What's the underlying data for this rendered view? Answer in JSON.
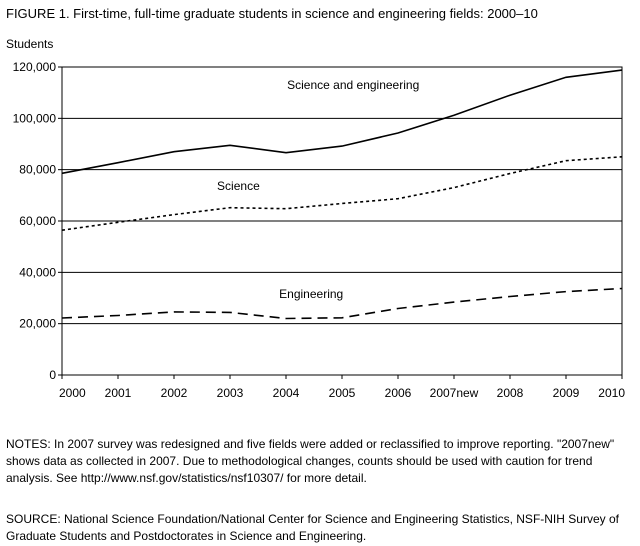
{
  "figure_title": "FIGURE 1.  First-time, full-time graduate students in science and engineering fields: 2000–10",
  "chart_data": {
    "type": "line",
    "title": "FIGURE 1.  First-time, full-time graduate students in science and engineering fields: 2000–10",
    "xlabel": "",
    "ylabel": "Students",
    "categories": [
      "2000",
      "2001",
      "2002",
      "2003",
      "2004",
      "2005",
      "2006",
      "2007new",
      "2008",
      "2009",
      "2010"
    ],
    "ylim": [
      0,
      120000
    ],
    "yticks": [
      0,
      20000,
      40000,
      60000,
      80000,
      100000,
      120000
    ],
    "ytick_labels": [
      "0",
      "20,000",
      "40,000",
      "60,000",
      "80,000",
      "100,000",
      "120,000"
    ],
    "grid": "horizontal",
    "legend": "none (series labeled directly on chart)",
    "series": [
      {
        "name": "Science and engineering",
        "line_style": "solid",
        "values": [
          78600,
          82700,
          87000,
          89500,
          86600,
          89200,
          94300,
          101200,
          109000,
          116000,
          118800
        ]
      },
      {
        "name": "Science",
        "line_style": "dotted",
        "values": [
          56400,
          59500,
          62500,
          65200,
          64800,
          66800,
          68700,
          73000,
          78500,
          83500,
          85000
        ]
      },
      {
        "name": "Engineering",
        "line_style": "dashed",
        "values": [
          22200,
          23200,
          24600,
          24400,
          22000,
          22300,
          25900,
          28400,
          30600,
          32500,
          33700
        ]
      }
    ]
  },
  "notes": "NOTES:  In 2007 survey was redesigned and five fields were added or reclassified to improve reporting. \"2007new\" shows data as collected in 2007. Due to methodological changes, counts should be used with caution for trend analysis. See http://www.nsf.gov/statistics/nsf10307/ for more detail.",
  "source": "SOURCE:  National Science Foundation/National Center for Science and Engineering Statistics, NSF-NIH Survey of Graduate Students and Postdoctorates in Science and Engineering."
}
